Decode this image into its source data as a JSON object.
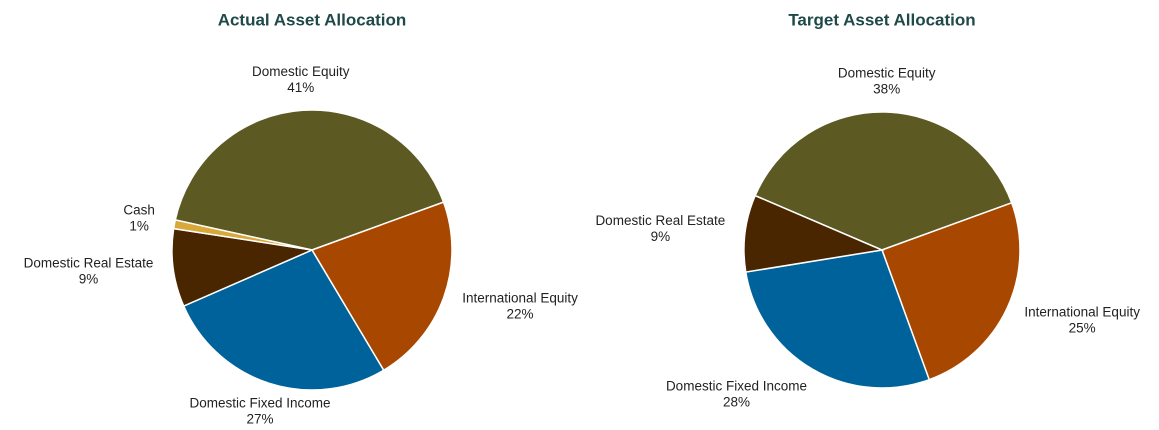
{
  "chart_data": [
    {
      "type": "pie",
      "title": "Actual Asset Allocation",
      "categories": [
        "Domestic Equity",
        "International Equity",
        "Domestic Fixed Income",
        "Domestic Real Estate",
        "Cash"
      ],
      "values": [
        41,
        22,
        27,
        9,
        1
      ],
      "value_labels": [
        "41%",
        "22%",
        "27%",
        "9%",
        "1%"
      ],
      "colors": [
        "#5c5a22",
        "#a84800",
        "#00629b",
        "#4a2600",
        "#d9a83a"
      ]
    },
    {
      "type": "pie",
      "title": "Target Asset Allocation",
      "categories": [
        "Domestic Equity",
        "International Equity",
        "Domestic Fixed Income",
        "Domestic Real Estate"
      ],
      "values": [
        38,
        25,
        28,
        9
      ],
      "value_labels": [
        "38%",
        "25%",
        "28%",
        "9%"
      ],
      "colors": [
        "#5c5a22",
        "#a84800",
        "#00629b",
        "#4a2600"
      ]
    }
  ]
}
